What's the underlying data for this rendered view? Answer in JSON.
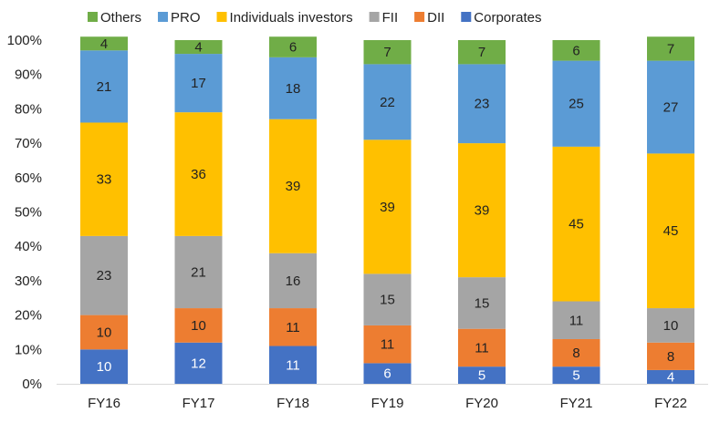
{
  "chart_data": {
    "type": "bar",
    "stacked": true,
    "percent_axis": true,
    "categories": [
      "FY16",
      "FY17",
      "FY18",
      "FY19",
      "FY20",
      "FY21",
      "FY22"
    ],
    "series": [
      {
        "name": "Corporates",
        "color": "#4472C4",
        "values": [
          10,
          12,
          11,
          6,
          5,
          5,
          4
        ]
      },
      {
        "name": "DII",
        "color": "#ED7D31",
        "values": [
          10,
          10,
          11,
          11,
          11,
          8,
          8
        ]
      },
      {
        "name": "FII",
        "color": "#A5A5A5",
        "values": [
          23,
          21,
          16,
          15,
          15,
          11,
          10
        ]
      },
      {
        "name": "Individuals investors",
        "color": "#FFC000",
        "values": [
          33,
          36,
          39,
          39,
          39,
          45,
          45
        ]
      },
      {
        "name": "PRO",
        "color": "#5B9BD5",
        "values": [
          21,
          17,
          18,
          22,
          23,
          25,
          27
        ]
      },
      {
        "name": "Others",
        "color": "#70AD47",
        "values": [
          4,
          4,
          6,
          7,
          7,
          6,
          7
        ]
      }
    ],
    "legend_order": [
      "Others",
      "PRO",
      "Individuals investors",
      "FII",
      "DII",
      "Corporates"
    ],
    "ylim": [
      0,
      100
    ],
    "yticks": [
      "0%",
      "10%",
      "20%",
      "30%",
      "40%",
      "50%",
      "60%",
      "70%",
      "80%",
      "90%",
      "100%"
    ],
    "legend_position": "top",
    "grid": false
  }
}
